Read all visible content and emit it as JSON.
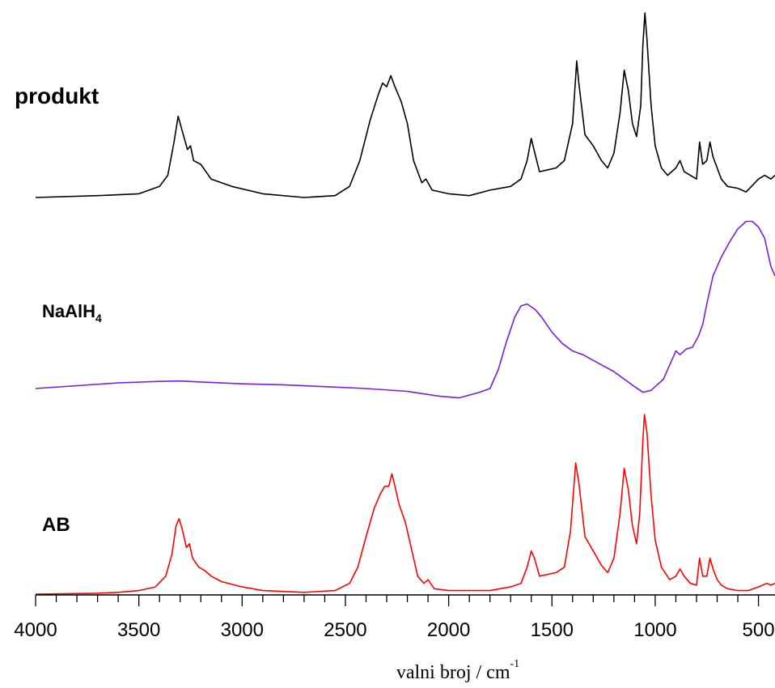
{
  "chart_data": {
    "type": "line",
    "title": "",
    "xlabel": "valni broj / cm",
    "xlabel_sup": "-1",
    "xlim": [
      4000,
      420
    ],
    "x_reversed": true,
    "x_ticks": [
      4000,
      3500,
      3000,
      2500,
      2000,
      1500,
      1000,
      500
    ],
    "x_tick_labels": [
      "4000",
      "3500",
      "3000",
      "2500",
      "2000",
      "1500",
      "1000",
      "500"
    ],
    "y_axis_shown": false,
    "series": [
      {
        "name": "produkt",
        "label_main": "produkt",
        "label_sub": "",
        "color": "#000000",
        "points": [
          [
            4000,
            0.0
          ],
          [
            3700,
            0.01
          ],
          [
            3500,
            0.02
          ],
          [
            3400,
            0.06
          ],
          [
            3360,
            0.12
          ],
          [
            3330,
            0.3
          ],
          [
            3310,
            0.44
          ],
          [
            3290,
            0.36
          ],
          [
            3265,
            0.26
          ],
          [
            3250,
            0.28
          ],
          [
            3235,
            0.2
          ],
          [
            3200,
            0.18
          ],
          [
            3150,
            0.1
          ],
          [
            3050,
            0.06
          ],
          [
            2900,
            0.02
          ],
          [
            2700,
            0.0
          ],
          [
            2550,
            0.01
          ],
          [
            2480,
            0.06
          ],
          [
            2430,
            0.2
          ],
          [
            2380,
            0.42
          ],
          [
            2340,
            0.56
          ],
          [
            2320,
            0.62
          ],
          [
            2300,
            0.6
          ],
          [
            2280,
            0.66
          ],
          [
            2260,
            0.6
          ],
          [
            2230,
            0.52
          ],
          [
            2200,
            0.4
          ],
          [
            2170,
            0.2
          ],
          [
            2130,
            0.08
          ],
          [
            2110,
            0.1
          ],
          [
            2080,
            0.04
          ],
          [
            2000,
            0.02
          ],
          [
            1900,
            0.01
          ],
          [
            1800,
            0.04
          ],
          [
            1700,
            0.06
          ],
          [
            1650,
            0.1
          ],
          [
            1620,
            0.2
          ],
          [
            1600,
            0.32
          ],
          [
            1585,
            0.25
          ],
          [
            1560,
            0.14
          ],
          [
            1520,
            0.15
          ],
          [
            1480,
            0.16
          ],
          [
            1440,
            0.2
          ],
          [
            1400,
            0.4
          ],
          [
            1380,
            0.74
          ],
          [
            1370,
            0.62
          ],
          [
            1340,
            0.34
          ],
          [
            1300,
            0.28
          ],
          [
            1260,
            0.2
          ],
          [
            1230,
            0.16
          ],
          [
            1200,
            0.24
          ],
          [
            1170,
            0.46
          ],
          [
            1150,
            0.69
          ],
          [
            1130,
            0.58
          ],
          [
            1110,
            0.4
          ],
          [
            1090,
            0.33
          ],
          [
            1070,
            0.5
          ],
          [
            1060,
            0.82
          ],
          [
            1050,
            1.0
          ],
          [
            1040,
            0.86
          ],
          [
            1020,
            0.5
          ],
          [
            1000,
            0.28
          ],
          [
            970,
            0.16
          ],
          [
            940,
            0.12
          ],
          [
            900,
            0.16
          ],
          [
            880,
            0.2
          ],
          [
            860,
            0.14
          ],
          [
            830,
            0.12
          ],
          [
            800,
            0.1
          ],
          [
            785,
            0.3
          ],
          [
            770,
            0.18
          ],
          [
            750,
            0.2
          ],
          [
            735,
            0.3
          ],
          [
            720,
            0.22
          ],
          [
            700,
            0.16
          ],
          [
            680,
            0.1
          ],
          [
            650,
            0.06
          ],
          [
            600,
            0.05
          ],
          [
            560,
            0.03
          ],
          [
            500,
            0.1
          ],
          [
            470,
            0.12
          ],
          [
            440,
            0.1
          ],
          [
            420,
            0.12
          ]
        ]
      },
      {
        "name": "NaAlH4",
        "label_main": "NaAlH",
        "label_sub": "4",
        "color": "#7a1ce0",
        "points": [
          [
            4000,
            0.0
          ],
          [
            3800,
            0.015
          ],
          [
            3600,
            0.03
          ],
          [
            3400,
            0.038
          ],
          [
            3300,
            0.04
          ],
          [
            3200,
            0.035
          ],
          [
            3000,
            0.025
          ],
          [
            2800,
            0.02
          ],
          [
            2600,
            0.01
          ],
          [
            2400,
            0.0
          ],
          [
            2200,
            -0.015
          ],
          [
            2050,
            -0.04
          ],
          [
            1950,
            -0.05
          ],
          [
            1850,
            -0.02
          ],
          [
            1800,
            0.0
          ],
          [
            1760,
            0.1
          ],
          [
            1720,
            0.25
          ],
          [
            1680,
            0.38
          ],
          [
            1650,
            0.44
          ],
          [
            1620,
            0.45
          ],
          [
            1580,
            0.42
          ],
          [
            1550,
            0.38
          ],
          [
            1500,
            0.3
          ],
          [
            1450,
            0.24
          ],
          [
            1400,
            0.2
          ],
          [
            1350,
            0.18
          ],
          [
            1300,
            0.15
          ],
          [
            1250,
            0.12
          ],
          [
            1200,
            0.09
          ],
          [
            1150,
            0.05
          ],
          [
            1100,
            0.01
          ],
          [
            1060,
            -0.02
          ],
          [
            1020,
            -0.01
          ],
          [
            960,
            0.05
          ],
          [
            920,
            0.15
          ],
          [
            900,
            0.2
          ],
          [
            880,
            0.18
          ],
          [
            850,
            0.21
          ],
          [
            820,
            0.22
          ],
          [
            790,
            0.28
          ],
          [
            770,
            0.34
          ],
          [
            750,
            0.45
          ],
          [
            720,
            0.6
          ],
          [
            680,
            0.7
          ],
          [
            640,
            0.78
          ],
          [
            600,
            0.85
          ],
          [
            560,
            0.89
          ],
          [
            530,
            0.89
          ],
          [
            500,
            0.86
          ],
          [
            470,
            0.8
          ],
          [
            440,
            0.65
          ],
          [
            420,
            0.6
          ]
        ]
      },
      {
        "name": "AB",
        "label_main": "AB",
        "label_sub": "",
        "color": "#ff0000",
        "points": [
          [
            4000,
            0.0
          ],
          [
            3700,
            0.005
          ],
          [
            3600,
            0.01
          ],
          [
            3500,
            0.02
          ],
          [
            3420,
            0.04
          ],
          [
            3370,
            0.1
          ],
          [
            3340,
            0.22
          ],
          [
            3320,
            0.38
          ],
          [
            3305,
            0.42
          ],
          [
            3290,
            0.36
          ],
          [
            3270,
            0.26
          ],
          [
            3255,
            0.28
          ],
          [
            3240,
            0.2
          ],
          [
            3210,
            0.15
          ],
          [
            3180,
            0.13
          ],
          [
            3150,
            0.1
          ],
          [
            3100,
            0.07
          ],
          [
            3000,
            0.04
          ],
          [
            2900,
            0.02
          ],
          [
            2700,
            0.01
          ],
          [
            2550,
            0.02
          ],
          [
            2480,
            0.06
          ],
          [
            2440,
            0.15
          ],
          [
            2400,
            0.32
          ],
          [
            2360,
            0.48
          ],
          [
            2330,
            0.56
          ],
          [
            2310,
            0.6
          ],
          [
            2290,
            0.6
          ],
          [
            2275,
            0.67
          ],
          [
            2260,
            0.6
          ],
          [
            2240,
            0.5
          ],
          [
            2210,
            0.4
          ],
          [
            2180,
            0.25
          ],
          [
            2150,
            0.1
          ],
          [
            2120,
            0.06
          ],
          [
            2100,
            0.08
          ],
          [
            2070,
            0.03
          ],
          [
            2000,
            0.02
          ],
          [
            1900,
            0.02
          ],
          [
            1800,
            0.02
          ],
          [
            1700,
            0.04
          ],
          [
            1650,
            0.06
          ],
          [
            1620,
            0.15
          ],
          [
            1600,
            0.24
          ],
          [
            1585,
            0.2
          ],
          [
            1560,
            0.1
          ],
          [
            1520,
            0.11
          ],
          [
            1480,
            0.12
          ],
          [
            1440,
            0.15
          ],
          [
            1410,
            0.35
          ],
          [
            1385,
            0.73
          ],
          [
            1370,
            0.62
          ],
          [
            1340,
            0.32
          ],
          [
            1300,
            0.24
          ],
          [
            1260,
            0.16
          ],
          [
            1230,
            0.12
          ],
          [
            1200,
            0.2
          ],
          [
            1170,
            0.45
          ],
          [
            1150,
            0.7
          ],
          [
            1130,
            0.58
          ],
          [
            1110,
            0.38
          ],
          [
            1090,
            0.28
          ],
          [
            1075,
            0.45
          ],
          [
            1060,
            0.85
          ],
          [
            1052,
            1.0
          ],
          [
            1040,
            0.9
          ],
          [
            1020,
            0.55
          ],
          [
            1000,
            0.3
          ],
          [
            970,
            0.15
          ],
          [
            930,
            0.08
          ],
          [
            900,
            0.1
          ],
          [
            880,
            0.14
          ],
          [
            860,
            0.1
          ],
          [
            830,
            0.06
          ],
          [
            800,
            0.05
          ],
          [
            785,
            0.2
          ],
          [
            770,
            0.1
          ],
          [
            750,
            0.1
          ],
          [
            735,
            0.2
          ],
          [
            720,
            0.14
          ],
          [
            700,
            0.08
          ],
          [
            680,
            0.05
          ],
          [
            650,
            0.03
          ],
          [
            600,
            0.02
          ],
          [
            550,
            0.02
          ],
          [
            500,
            0.04
          ],
          [
            460,
            0.06
          ],
          [
            440,
            0.05
          ],
          [
            420,
            0.06
          ]
        ]
      }
    ]
  }
}
